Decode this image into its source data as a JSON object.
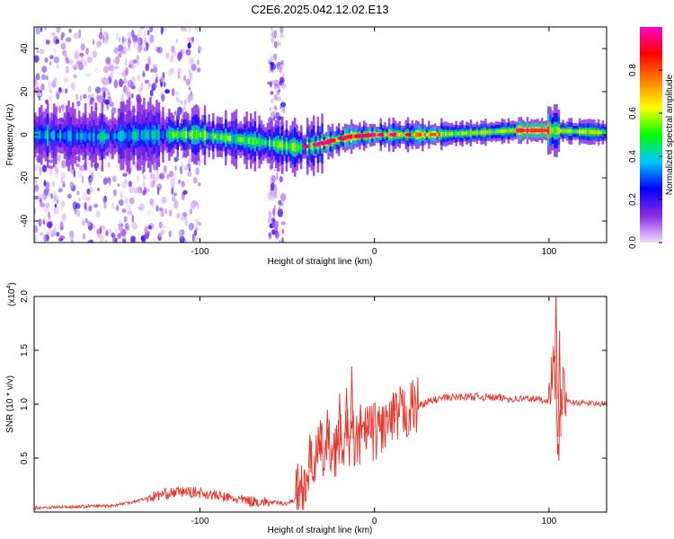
{
  "title": "C2E6.2025.042.12.02.E13",
  "chart_data": [
    {
      "type": "heatmap",
      "xlabel": "Height of straight line (km)",
      "ylabel": "Frequency (Hz)",
      "xlim": [
        -195,
        133
      ],
      "ylim": [
        -50,
        50
      ],
      "xticks": [
        -100,
        0,
        100
      ],
      "yticks": [
        -40,
        -20,
        0,
        20,
        40
      ],
      "grid": false,
      "ridge": [
        {
          "x": -195,
          "y": 0
        },
        {
          "x": -160,
          "y": -1
        },
        {
          "x": -130,
          "y": 0
        },
        {
          "x": -100,
          "y": 0
        },
        {
          "x": -80,
          "y": -2
        },
        {
          "x": -60,
          "y": -4
        },
        {
          "x": -45,
          "y": -6
        },
        {
          "x": -35,
          "y": -5
        },
        {
          "x": -25,
          "y": -3
        },
        {
          "x": -15,
          "y": -1
        },
        {
          "x": 0,
          "y": 0
        },
        {
          "x": 10,
          "y": 0
        },
        {
          "x": 30,
          "y": 0
        },
        {
          "x": 60,
          "y": 1
        },
        {
          "x": 80,
          "y": 2
        },
        {
          "x": 100,
          "y": 2
        },
        {
          "x": 133,
          "y": 1
        }
      ],
      "colorbar": {
        "label": "Normalized spectral amplitude",
        "range": [
          0,
          1
        ],
        "ticks": [
          "0.0",
          "0.2",
          "0.4",
          "0.6",
          "0.8"
        ],
        "colors": [
          "#f2ddff",
          "#8a2be2",
          "#0000ff",
          "#00c8ff",
          "#00ff00",
          "#ffff00",
          "#ff8000",
          "#ff0000",
          "#ff00c8"
        ]
      }
    },
    {
      "type": "line",
      "xlabel": "Height of straight line (km)",
      "ylabel": "SNR (10 * v/v)",
      "y_multiplier": "(x10",
      "y_multiplier_exp": "4",
      "y_multiplier_close": ")",
      "xlim": [
        -195,
        133
      ],
      "ylim": [
        0,
        2.0
      ],
      "xticks": [
        -100,
        0,
        100
      ],
      "yticks": [
        0.5,
        1.0,
        1.5,
        2.0
      ],
      "ytick_labels": [
        "0.5",
        "1.0",
        "1.5",
        "2.0"
      ],
      "grid": false,
      "series": [
        {
          "color": "#e8342b",
          "x": [
            -195,
            -170,
            -150,
            -140,
            -130,
            -120,
            -110,
            -100,
            -90,
            -80,
            -70,
            -60,
            -50,
            -45,
            -40,
            -35,
            -30,
            -25,
            -20,
            -15,
            -10,
            -5,
            0,
            5,
            10,
            15,
            20,
            25,
            30,
            40,
            50,
            60,
            70,
            80,
            90,
            100,
            103,
            105,
            106,
            108,
            110,
            120,
            133
          ],
          "y": [
            0.04,
            0.05,
            0.06,
            0.09,
            0.13,
            0.17,
            0.19,
            0.18,
            0.15,
            0.12,
            0.1,
            0.09,
            0.08,
            0.12,
            0.28,
            0.5,
            0.55,
            0.6,
            0.62,
            0.7,
            0.65,
            0.72,
            0.75,
            0.8,
            0.82,
            0.9,
            0.95,
            0.98,
            1.02,
            1.06,
            1.07,
            1.07,
            1.06,
            1.05,
            1.05,
            1.04,
            1.5,
            0.6,
            0.7,
            1.2,
            1.02,
            1.01,
            1.0
          ]
        }
      ],
      "peaks": [
        {
          "x": -44,
          "y": 0.45
        },
        {
          "x": -37,
          "y": 0.72
        },
        {
          "x": -31,
          "y": 0.85
        },
        {
          "x": -27,
          "y": 0.95
        },
        {
          "x": -20,
          "y": 1.1
        },
        {
          "x": -16,
          "y": 1.15
        },
        {
          "x": -13,
          "y": 1.35
        },
        {
          "x": -8,
          "y": 1.0
        },
        {
          "x": -4,
          "y": 0.98
        },
        {
          "x": 11,
          "y": 1.1
        },
        {
          "x": 104,
          "y": 2.05
        },
        {
          "x": 106,
          "y": 1.68
        }
      ]
    }
  ]
}
